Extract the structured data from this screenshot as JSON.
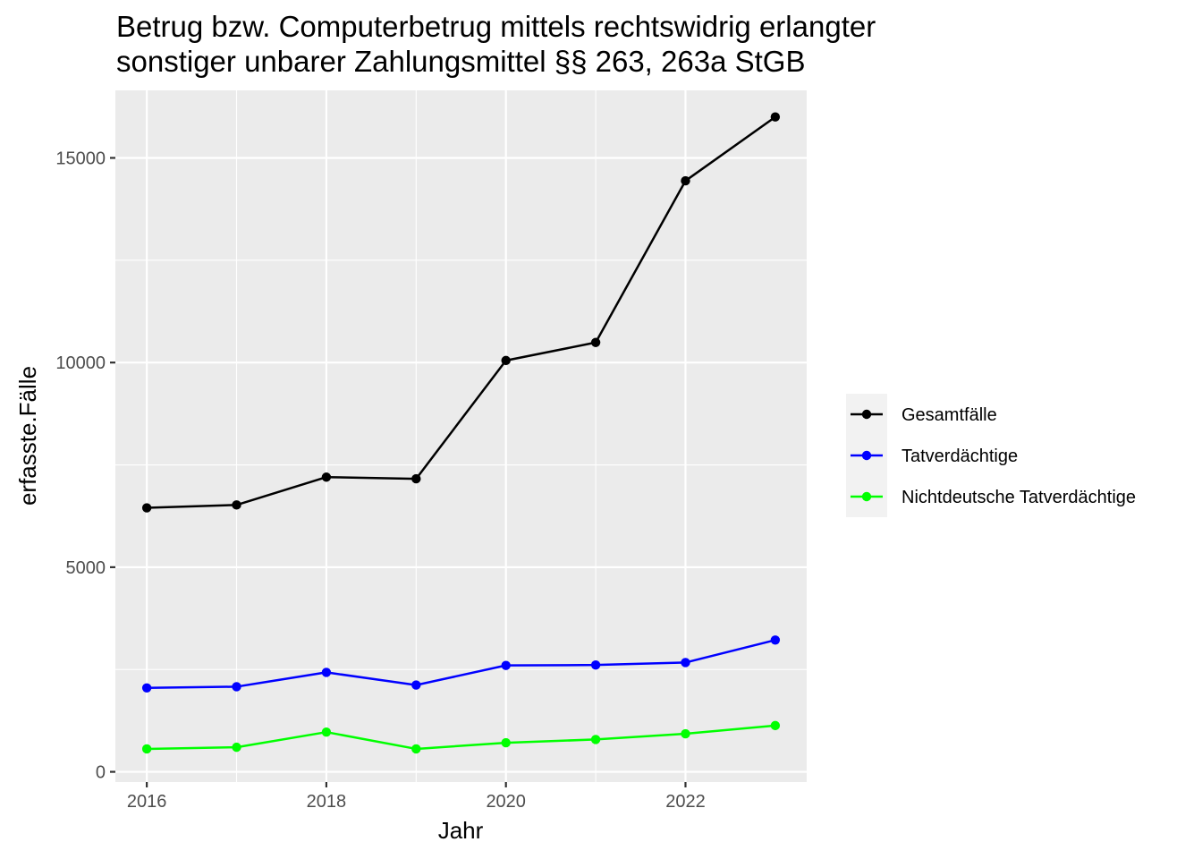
{
  "chart_data": {
    "type": "line",
    "title_lines": [
      "Betrug bzw. Computerbetrug mittels rechtswidrig erlangter",
      "sonstiger unbarer Zahlungsmittel §§ 263, 263a StGB"
    ],
    "xlabel": "Jahr",
    "ylabel": "erfasste.Fälle",
    "x": [
      2016,
      2017,
      2018,
      2019,
      2020,
      2021,
      2022,
      2023
    ],
    "xlim": [
      2015.65,
      2023.35
    ],
    "ylim": [
      -250,
      16650
    ],
    "x_ticks": [
      2016,
      2018,
      2020,
      2022
    ],
    "x_tick_labels": [
      "2016",
      "2018",
      "2020",
      "2022"
    ],
    "y_ticks": [
      0,
      5000,
      10000,
      15000
    ],
    "y_tick_labels": [
      "0",
      "5000",
      "10000",
      "15000"
    ],
    "grid": true,
    "legend_position": "right",
    "series": [
      {
        "name": "Gesamtfälle",
        "color": "#000000",
        "values": [
          6450,
          6520,
          7200,
          7160,
          10050,
          10490,
          14440,
          16000
        ]
      },
      {
        "name": "Tatverdächtige",
        "color": "#0000ff",
        "values": [
          2050,
          2080,
          2430,
          2120,
          2600,
          2610,
          2670,
          3220
        ]
      },
      {
        "name": "Nichtdeutsche Tatverdächtige",
        "color": "#00ff00",
        "values": [
          560,
          600,
          970,
          560,
          710,
          790,
          930,
          1130
        ]
      }
    ]
  }
}
